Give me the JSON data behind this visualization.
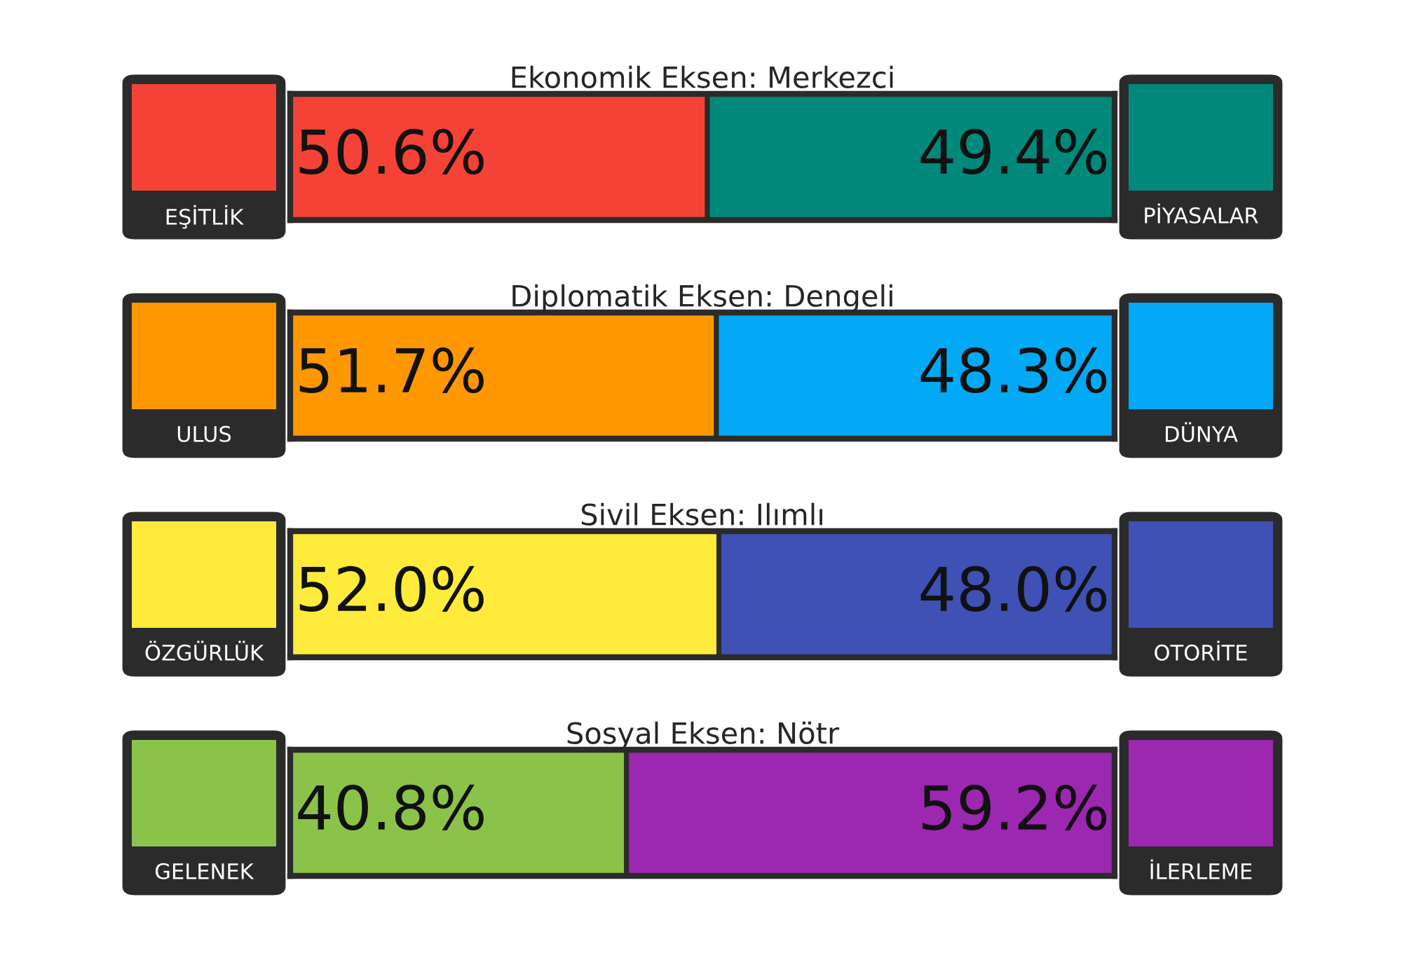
{
  "chart_data": [
    {
      "type": "bar",
      "orientation": "horizontal",
      "stacked": true,
      "title": "Ekonomik Eksen: Merkezci",
      "categories": [
        null
      ],
      "xlim": [
        0,
        100
      ],
      "tick_labels": false,
      "legend": false,
      "series": [
        {
          "name": "EŞİTLİK",
          "color": "#f44336",
          "values": [
            50.6
          ],
          "value_labels": [
            "50.6%"
          ]
        },
        {
          "name": "PİYASALAR",
          "color": "#00897b",
          "values": [
            49.4
          ],
          "value_labels": [
            "49.4%"
          ]
        }
      ]
    },
    {
      "type": "bar",
      "orientation": "horizontal",
      "stacked": true,
      "title": "Diplomatik Eksen: Dengeli",
      "categories": [
        null
      ],
      "xlim": [
        0,
        100
      ],
      "tick_labels": false,
      "legend": false,
      "series": [
        {
          "name": "ULUS",
          "color": "#ff9800",
          "values": [
            51.7
          ],
          "value_labels": [
            "51.7%"
          ]
        },
        {
          "name": "DÜNYA",
          "color": "#03a9f4",
          "values": [
            48.3
          ],
          "value_labels": [
            "48.3%"
          ]
        }
      ]
    },
    {
      "type": "bar",
      "orientation": "horizontal",
      "stacked": true,
      "title": "Sivil Eksen: Ilımlı",
      "categories": [
        null
      ],
      "xlim": [
        0,
        100
      ],
      "tick_labels": false,
      "legend": false,
      "series": [
        {
          "name": "ÖZGÜRLÜK",
          "color": "#ffeb3b",
          "values": [
            52.0
          ],
          "value_labels": [
            "52.0%"
          ]
        },
        {
          "name": "OTORİTE",
          "color": "#3f51b5",
          "values": [
            48.0
          ],
          "value_labels": [
            "48.0%"
          ]
        }
      ]
    },
    {
      "type": "bar",
      "orientation": "horizontal",
      "stacked": true,
      "title": "Sosyal Eksen: Nötr",
      "categories": [
        null
      ],
      "xlim": [
        0,
        100
      ],
      "tick_labels": false,
      "legend": false,
      "series": [
        {
          "name": "GELENEK",
          "color": "#8bc34a",
          "values": [
            40.8
          ],
          "value_labels": [
            "40.8%"
          ]
        },
        {
          "name": "İLERLEME",
          "color": "#9c27b0",
          "values": [
            59.2
          ],
          "value_labels": [
            "59.2%"
          ]
        }
      ]
    }
  ]
}
